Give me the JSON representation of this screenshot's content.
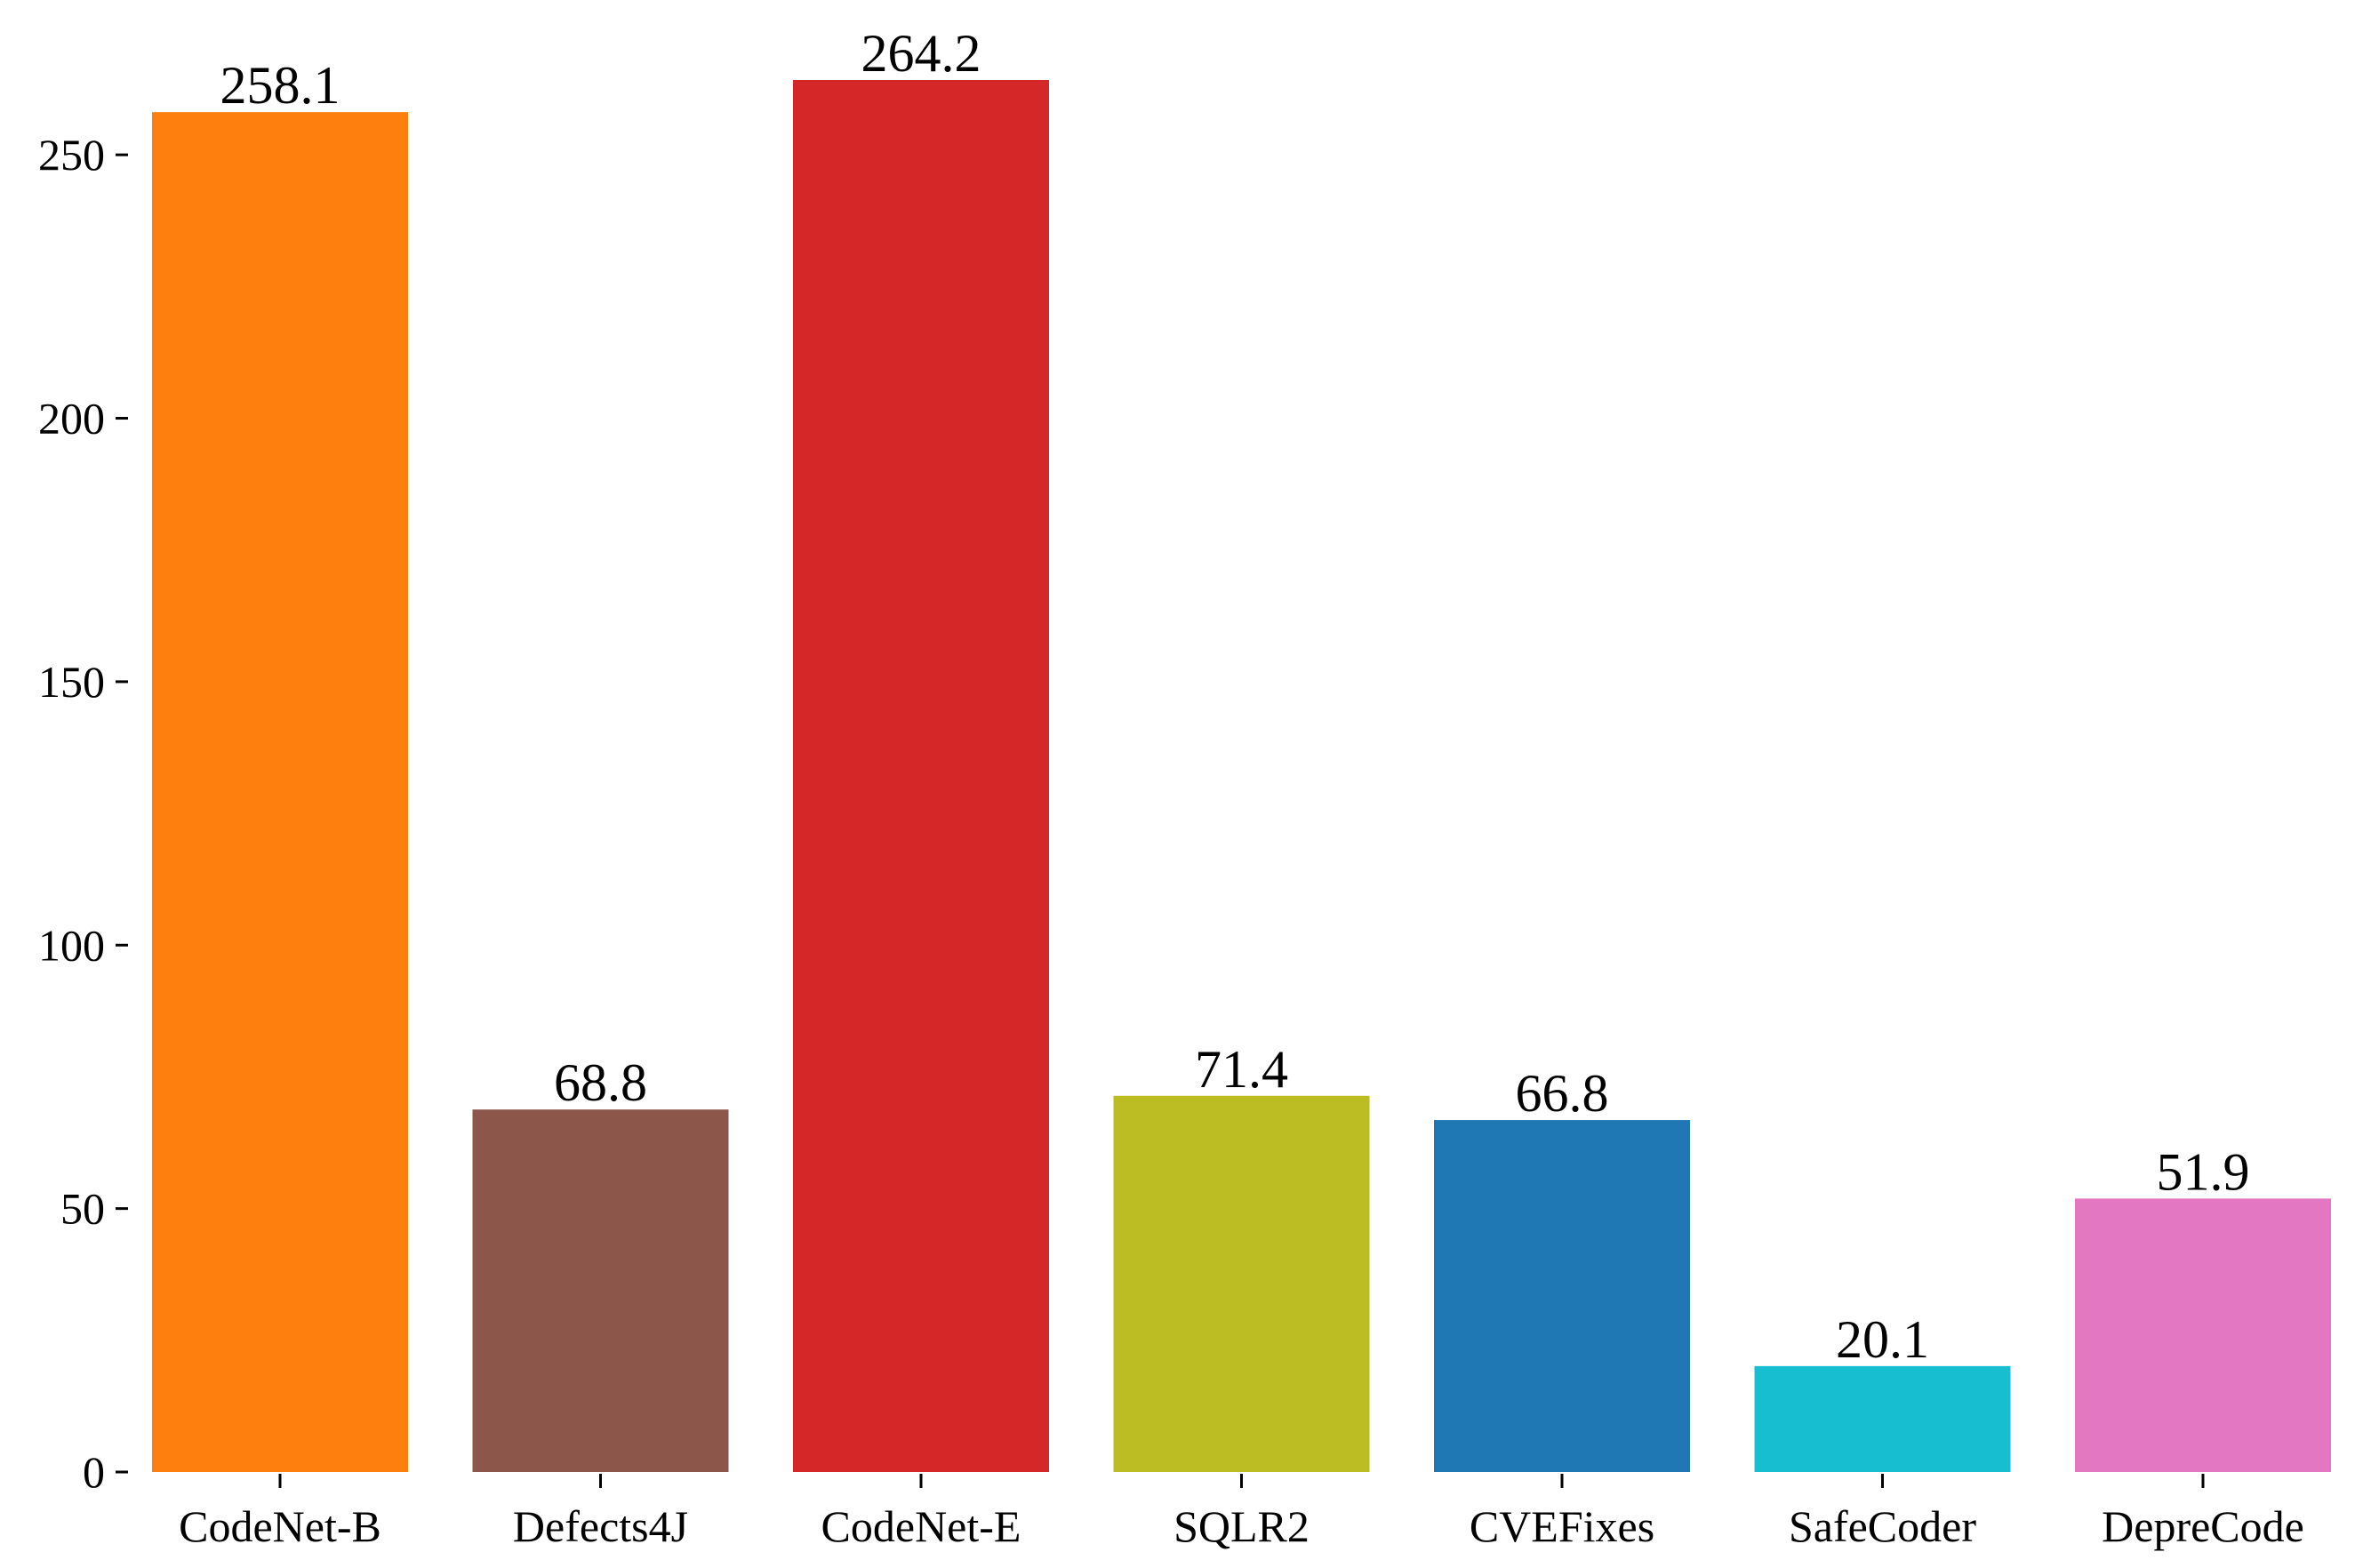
{
  "chart_data": {
    "type": "bar",
    "title": "",
    "xlabel": "",
    "ylabel": "",
    "categories": [
      "CodeNet-B",
      "Defects4J",
      "CodeNet-E",
      "SQLR2",
      "CVEFixes",
      "SafeCoder",
      "DepreCode"
    ],
    "values": [
      258.1,
      68.8,
      264.2,
      71.4,
      66.8,
      20.1,
      51.9
    ],
    "value_labels": [
      "258.1",
      "68.8",
      "264.2",
      "71.4",
      "66.8",
      "20.1",
      "51.9"
    ],
    "colors": [
      "#ff7f0e",
      "#8c564b",
      "#d62728",
      "#bcbd22",
      "#1f77b4",
      "#17becf",
      "#e377c2"
    ],
    "ylim": [
      0,
      264.2
    ],
    "yticks": [
      0,
      50,
      100,
      150,
      200,
      250
    ],
    "ytick_labels": [
      "0",
      "50",
      "100",
      "150",
      "200",
      "250"
    ],
    "grid": false,
    "legend": "none"
  }
}
